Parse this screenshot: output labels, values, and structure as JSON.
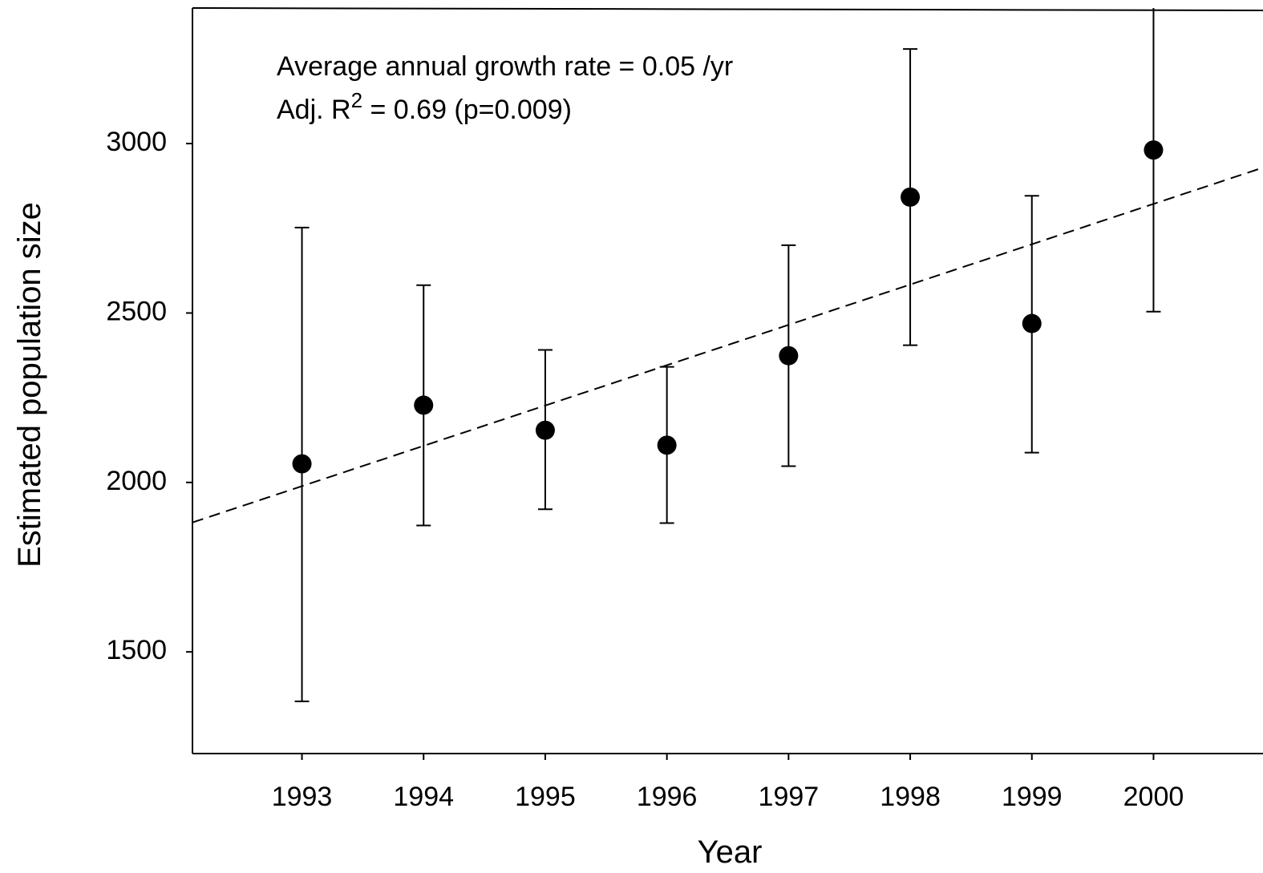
{
  "chart_data": {
    "type": "scatter",
    "x_label": "Year",
    "y_label": "Estimated population size",
    "annotations": [
      "Average annual growth rate = 0.05 /yr",
      [
        "Adj. R",
        "2",
        " = 0.69 (p=0.009)"
      ]
    ],
    "x": [
      1993,
      1994,
      1995,
      1996,
      1997,
      1998,
      1999,
      2000
    ],
    "series": [
      {
        "color": "#000000",
        "values": [
          2055,
          2228,
          2154,
          2110,
          2374,
          2842,
          2469,
          2981
        ],
        "lower": [
          1354,
          1873,
          1921,
          1880,
          2048,
          2405,
          2088,
          2504
        ],
        "upper": [
          2752,
          2582,
          2391,
          2341,
          2700,
          3279,
          2846,
          3458
        ]
      }
    ],
    "trend": {
      "x": [
        1992.1,
        2000.9
      ],
      "values": [
        1882,
        2929
      ],
      "color": "#000000",
      "dashed": true
    },
    "xlim": [
      1992.1,
      2000.9
    ],
    "ylim": [
      1200,
      3400
    ],
    "xticks": [
      1993,
      1994,
      1995,
      1996,
      1997,
      1998,
      1999,
      2000
    ],
    "yticks": [
      1500,
      2000,
      2500,
      3000
    ],
    "grid": false
  }
}
